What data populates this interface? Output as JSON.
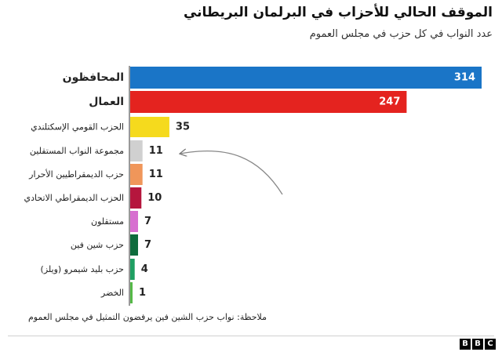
{
  "chart_data": {
    "type": "bar",
    "orientation": "horizontal",
    "title": "الموقف الحالي للأحزاب في البرلمان البريطاني",
    "subtitle": "عدد النواب في كل حزب في مجلس العموم",
    "categories": [
      "المحافظون",
      "العمال",
      "الحزب القومي الإسكتلندي",
      "مجموعة النواب المستقلين",
      "حزب الديمقراطيين الأحرار",
      "الحزب الديمقراطي الاتحادي",
      "مستقلون",
      "حزب شين فين",
      "حزب بليد شيمرو (ويلز)",
      "الخضر"
    ],
    "values": [
      314,
      247,
      35,
      11,
      11,
      10,
      7,
      7,
      4,
      1
    ],
    "colors": [
      "#1a75c7",
      "#e4231f",
      "#f5da1d",
      "#d0d0d0",
      "#f0965a",
      "#b5163d",
      "#d76fd0",
      "#0e6b3c",
      "#1f9f62",
      "#55b947"
    ],
    "value_labels_inside": [
      true,
      true,
      false,
      false,
      false,
      false,
      false,
      false,
      false,
      false
    ],
    "xlim": [
      0,
      320
    ],
    "grid": false,
    "legend": "none",
    "annotation": "arrow pointing to مجموعة النواب المستقلين",
    "footnote": "ملاحظة: نواب حزب الشين فين يرفضون التمثيل في مجلس العموم"
  },
  "branding": {
    "logo_letters": [
      "B",
      "B",
      "C"
    ]
  }
}
